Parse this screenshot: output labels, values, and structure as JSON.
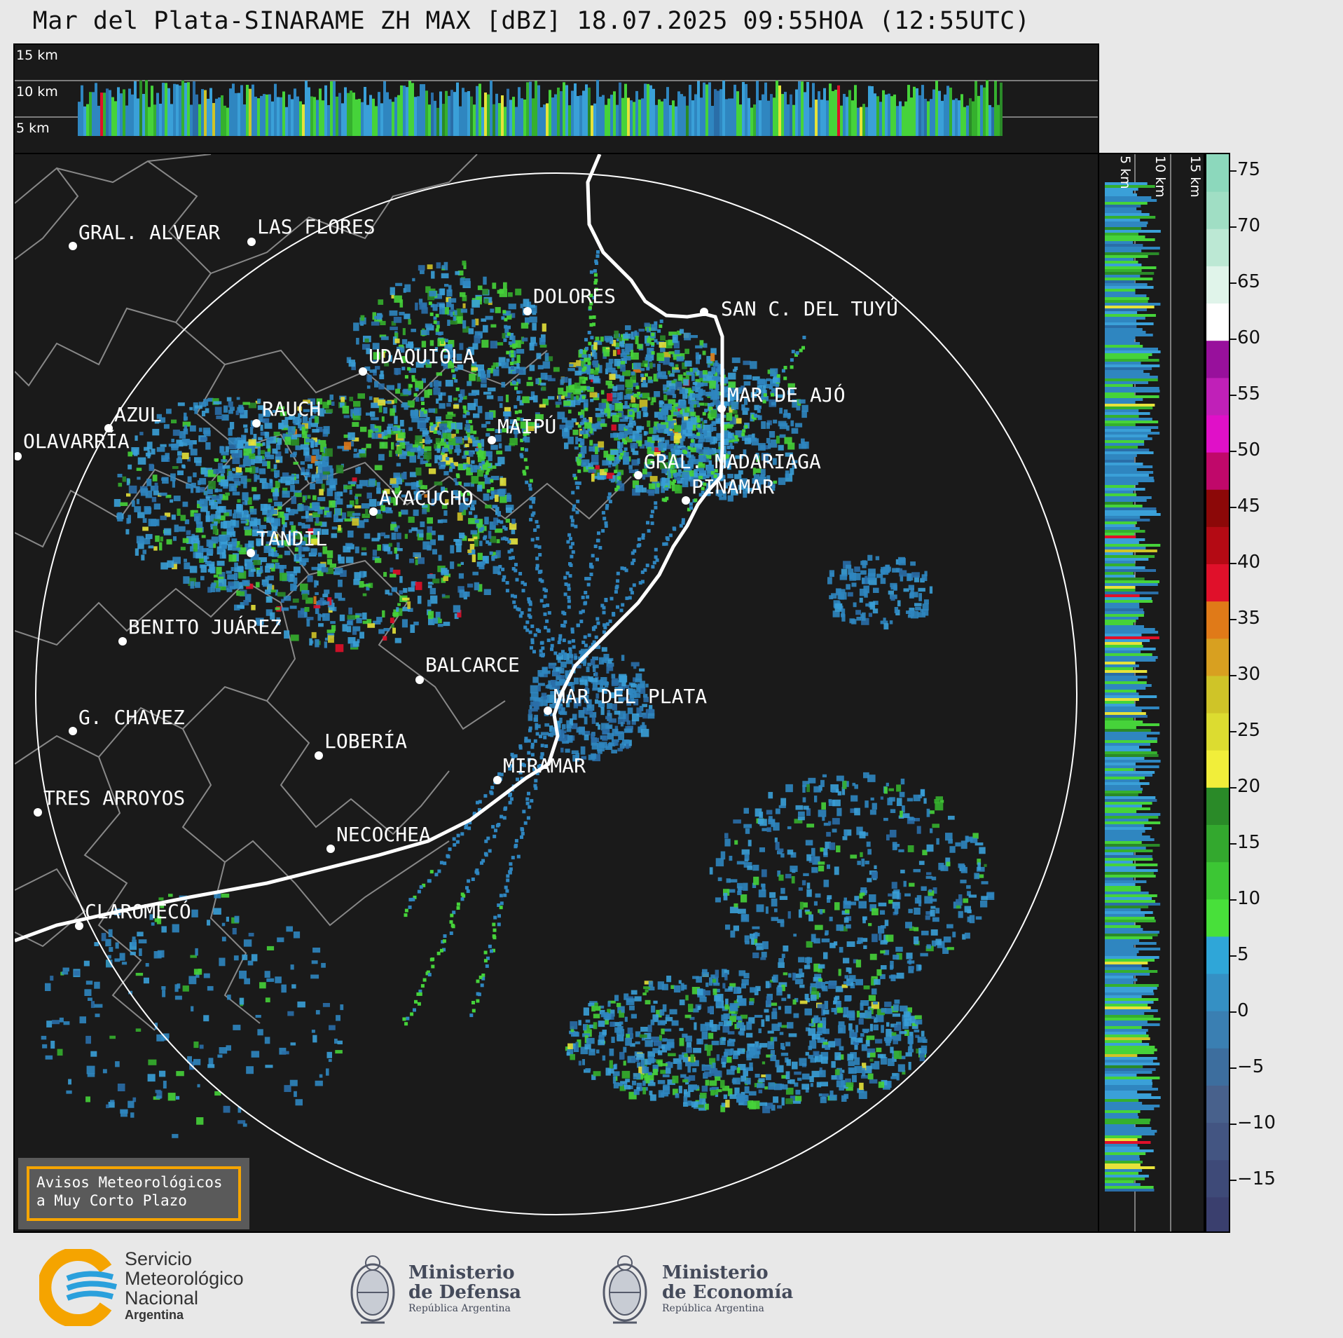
{
  "title": "Mar del Plata-SINARAME ZH MAX [dBZ] 18.07.2025 09:55HOA (12:55UTC)",
  "profile_labels": {
    "h15": "15 km",
    "h10": "10 km",
    "h5": "5 km"
  },
  "cities": [
    {
      "name": "GRAL. ALVEAR"
    },
    {
      "name": "LAS FLORES"
    },
    {
      "name": "DOLORES"
    },
    {
      "name": "SAN C. DEL TUYÚ"
    },
    {
      "name": "UDAQUIOLA"
    },
    {
      "name": "MAR DE AJÓ"
    },
    {
      "name": "AZUL"
    },
    {
      "name": "RAUCH"
    },
    {
      "name": "MAIPÚ"
    },
    {
      "name": "OLAVARRÍA"
    },
    {
      "name": "GRAL. MADARIAGA"
    },
    {
      "name": "PINAMAR"
    },
    {
      "name": "AYACUCHO"
    },
    {
      "name": "TANDIL"
    },
    {
      "name": "BENITO JUÁREZ"
    },
    {
      "name": "BALCARCE"
    },
    {
      "name": "MAR DEL PLATA"
    },
    {
      "name": "G. CHAVEZ"
    },
    {
      "name": "LOBERÍA"
    },
    {
      "name": "MIRAMAR"
    },
    {
      "name": "TRES ARROYOS"
    },
    {
      "name": "NECOCHEA"
    },
    {
      "name": "CLAROMECÓ"
    }
  ],
  "colorbar": {
    "ticks": [
      "75",
      "70",
      "65",
      "60",
      "55",
      "50",
      "45",
      "40",
      "35",
      "30",
      "25",
      "20",
      "15",
      "10",
      "5",
      "0",
      "−5",
      "−10",
      "−15"
    ],
    "colors": [
      "#3a3f6e",
      "#3e4a78",
      "#435582",
      "#48618c",
      "#3d6e9e",
      "#3a7fb2",
      "#3590c4",
      "#2fa6d8",
      "#48e03a",
      "#3cc634",
      "#33a82e",
      "#2a8a28",
      "#f1ee3a",
      "#dcdc30",
      "#cfc428",
      "#d8a020",
      "#e07a18",
      "#e0102a",
      "#b40a14",
      "#8c0808",
      "#c0086a",
      "#e010c8",
      "#c020b8",
      "#98109c",
      "#ffffff",
      "#e0f4ea",
      "#bce8d4",
      "#a0dec4",
      "#8cd8bc"
    ]
  },
  "notice": {
    "line1": "Avisos Meteorológicos",
    "line2": "a Muy Corto Plazo"
  },
  "logos": {
    "smn": {
      "l1": "Servicio",
      "l2": "Meteorológico",
      "l3": "Nacional",
      "l4": "Argentina"
    },
    "defensa": {
      "l1": "Ministerio",
      "l2": "de Defensa",
      "l3": "República Argentina"
    },
    "economia": {
      "l1": "Ministerio",
      "l2": "de Economía",
      "l3": "República Argentina"
    }
  }
}
